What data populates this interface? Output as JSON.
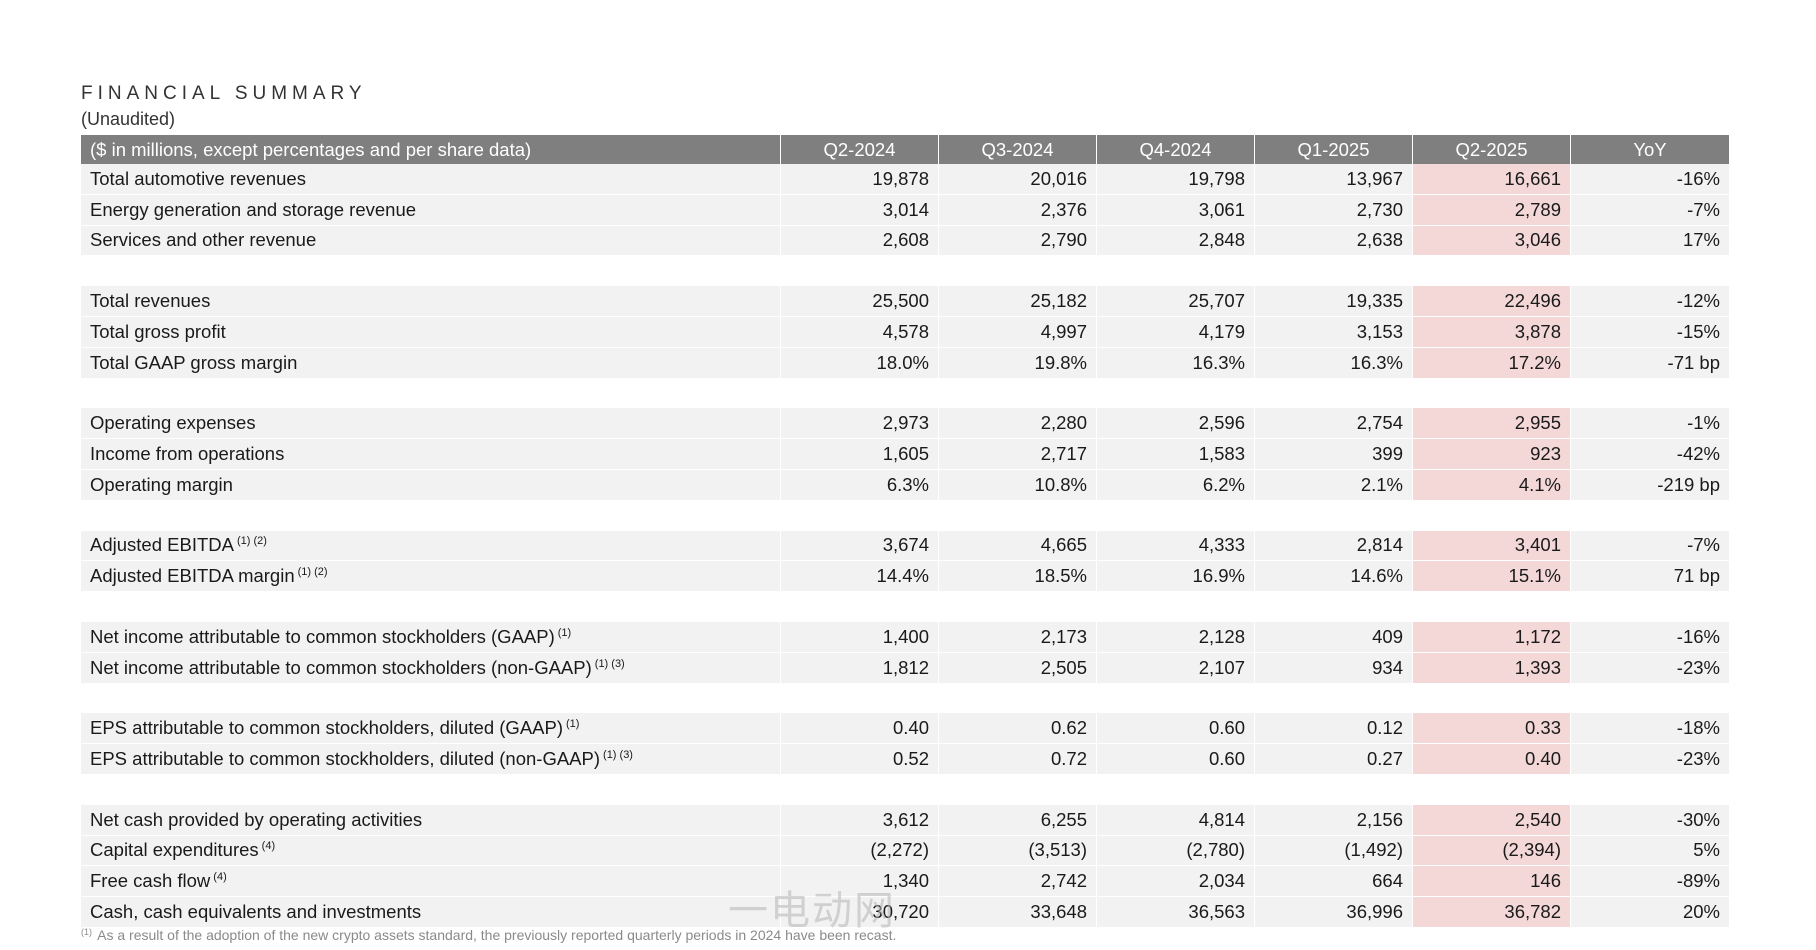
{
  "title": "FINANCIAL SUMMARY",
  "subtitle": "(Unaudited)",
  "table": {
    "header": [
      "($ in millions, except percentages and per share data)",
      "Q2-2024",
      "Q3-2024",
      "Q4-2024",
      "Q1-2025",
      "Q2-2025",
      "YoY"
    ],
    "rows": [
      {
        "label": "Total automotive revenues",
        "sup": "",
        "values": [
          "19,878",
          "20,016",
          "19,798",
          "13,967",
          "16,661",
          "-16%"
        ]
      },
      {
        "label": "Energy generation and storage revenue",
        "sup": "",
        "values": [
          "3,014",
          "2,376",
          "3,061",
          "2,730",
          "2,789",
          "-7%"
        ]
      },
      {
        "label": "Services and other revenue",
        "sup": "",
        "values": [
          "2,608",
          "2,790",
          "2,848",
          "2,638",
          "3,046",
          "17%"
        ]
      },
      {
        "spacer": true
      },
      {
        "label": "Total revenues",
        "sup": "",
        "values": [
          "25,500",
          "25,182",
          "25,707",
          "19,335",
          "22,496",
          "-12%"
        ]
      },
      {
        "label": "Total gross profit",
        "sup": "",
        "values": [
          "4,578",
          "4,997",
          "4,179",
          "3,153",
          "3,878",
          "-15%"
        ]
      },
      {
        "label": "Total GAAP gross margin",
        "sup": "",
        "values": [
          "18.0%",
          "19.8%",
          "16.3%",
          "16.3%",
          "17.2%",
          "-71 bp"
        ]
      },
      {
        "spacer": true
      },
      {
        "label": "Operating expenses",
        "sup": "",
        "values": [
          "2,973",
          "2,280",
          "2,596",
          "2,754",
          "2,955",
          "-1%"
        ]
      },
      {
        "label": "Income from operations",
        "sup": "",
        "values": [
          "1,605",
          "2,717",
          "1,583",
          "399",
          "923",
          "-42%"
        ]
      },
      {
        "label": "Operating margin",
        "sup": "",
        "values": [
          "6.3%",
          "10.8%",
          "6.2%",
          "2.1%",
          "4.1%",
          "-219 bp"
        ]
      },
      {
        "spacer": true
      },
      {
        "label": "Adjusted EBITDA",
        "sup": "(1) (2)",
        "values": [
          "3,674",
          "4,665",
          "4,333",
          "2,814",
          "3,401",
          "-7%"
        ]
      },
      {
        "label": "Adjusted EBITDA margin",
        "sup": "(1) (2)",
        "values": [
          "14.4%",
          "18.5%",
          "16.9%",
          "14.6%",
          "15.1%",
          "71 bp"
        ]
      },
      {
        "spacer": true
      },
      {
        "label": "Net income attributable to common stockholders (GAAP)",
        "sup": "(1)",
        "values": [
          "1,400",
          "2,173",
          "2,128",
          "409",
          "1,172",
          "-16%"
        ]
      },
      {
        "label": "Net income attributable to common stockholders (non-GAAP)",
        "sup": "(1) (3)",
        "values": [
          "1,812",
          "2,505",
          "2,107",
          "934",
          "1,393",
          "-23%"
        ]
      },
      {
        "spacer": true
      },
      {
        "label": "EPS attributable to common stockholders, diluted (GAAP)",
        "sup": "(1)",
        "values": [
          "0.40",
          "0.62",
          "0.60",
          "0.12",
          "0.33",
          "-18%"
        ]
      },
      {
        "label": "EPS attributable to common stockholders, diluted (non-GAAP)",
        "sup": "(1) (3)",
        "values": [
          "0.52",
          "0.72",
          "0.60",
          "0.27",
          "0.40",
          "-23%"
        ]
      },
      {
        "spacer": true
      },
      {
        "label": "Net cash provided by operating activities",
        "sup": "",
        "values": [
          "3,612",
          "6,255",
          "4,814",
          "2,156",
          "2,540",
          "-30%"
        ]
      },
      {
        "label": "Capital expenditures",
        "sup": "(4)",
        "values": [
          "(2,272)",
          "(3,513)",
          "(2,780)",
          "(1,492)",
          "(2,394)",
          "5%"
        ]
      },
      {
        "label": "Free cash flow",
        "sup": "(4)",
        "values": [
          "1,340",
          "2,742",
          "2,034",
          "664",
          "146",
          "-89%"
        ]
      },
      {
        "label": "Cash, cash equivalents and investments",
        "sup": "",
        "values": [
          "30,720",
          "33,648",
          "36,563",
          "36,996",
          "36,782",
          "20%"
        ]
      }
    ]
  },
  "footnote": {
    "sup": "(1)",
    "text": "As a result of the adoption of the new crypto assets standard, the previously reported quarterly periods in 2024 have been recast."
  },
  "watermark": "一电动网",
  "colors": {
    "header_bg": "#7f7f7f",
    "row_bg": "#f2f2f2",
    "highlight": "#f4d8d8"
  }
}
